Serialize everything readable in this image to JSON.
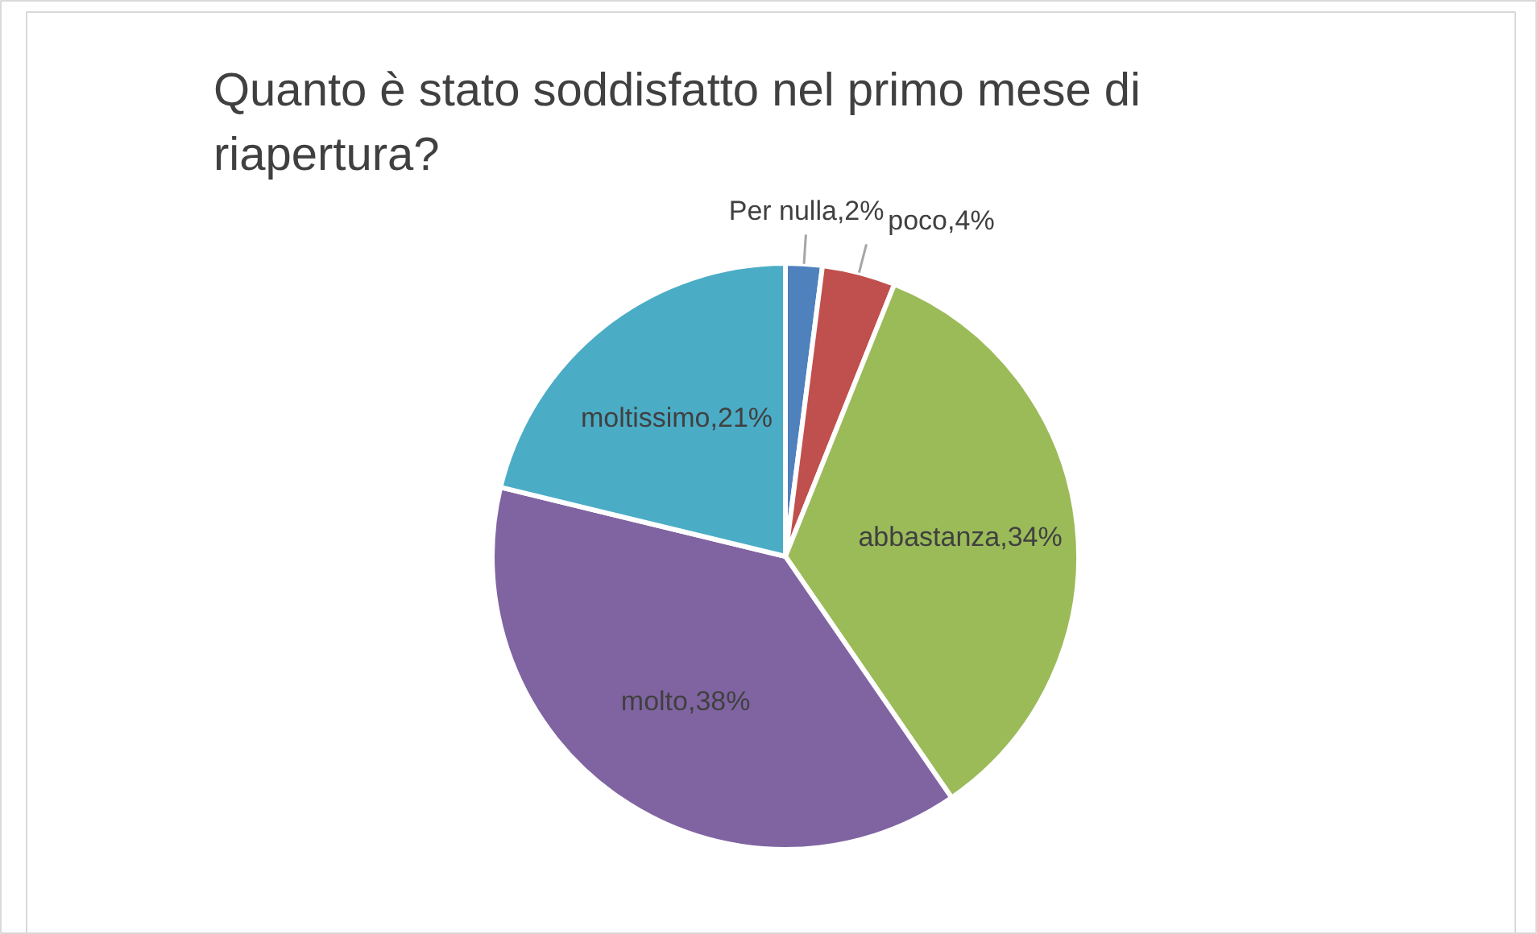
{
  "chart_data": {
    "type": "pie",
    "title": "Quanto è stato soddisfatto nel primo mese di riapertura?",
    "categories": [
      "Per nulla",
      "poco",
      "abbastanza",
      "molto",
      "moltissimo"
    ],
    "values": [
      2,
      4,
      34,
      38,
      21
    ],
    "colors": [
      "#4f81bd",
      "#c0504d",
      "#9bbb59",
      "#8064a2",
      "#4bacc6"
    ],
    "value_labels": [
      "2%",
      "4%",
      "34%",
      "38%",
      "21%"
    ]
  }
}
